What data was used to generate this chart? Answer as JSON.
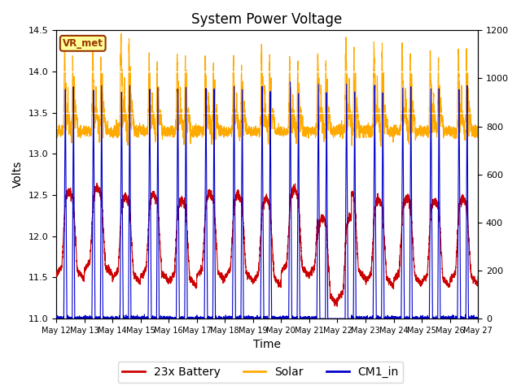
{
  "title": "System Power Voltage",
  "xlabel": "Time",
  "ylabel_left": "Volts",
  "ylim_left": [
    11.0,
    14.5
  ],
  "ylim_right": [
    0,
    1200
  ],
  "yticks_left": [
    11.0,
    11.5,
    12.0,
    12.5,
    13.0,
    13.5,
    14.0,
    14.5
  ],
  "yticks_right": [
    0,
    200,
    400,
    600,
    800,
    1000,
    1200
  ],
  "xtick_labels": [
    "May 12",
    "May 13",
    "May 14",
    "May 15",
    "May 16",
    "May 17",
    "May 18",
    "May 19",
    "May 20",
    "May 21",
    "May 22",
    "May 23",
    "May 24",
    "May 25",
    "May 26",
    "May 27"
  ],
  "battery_color": "#cc0000",
  "solar_color": "#ffaa00",
  "cm1_color": "#0000cc",
  "legend_labels": [
    "23x Battery",
    "Solar",
    "CM1_in"
  ],
  "annotation_text": "VR_met",
  "annotation_fg": "#993300",
  "annotation_bg": "#ffff99",
  "annotation_edge": "#993300",
  "background_color": "#ffffff",
  "plot_bg_color": "#e8e8e8",
  "grid_color": "#ffffff",
  "title_fontsize": 12,
  "axis_fontsize": 10,
  "tick_fontsize": 8,
  "legend_fontsize": 10,
  "n_days": 15,
  "pts_per_day": 288
}
